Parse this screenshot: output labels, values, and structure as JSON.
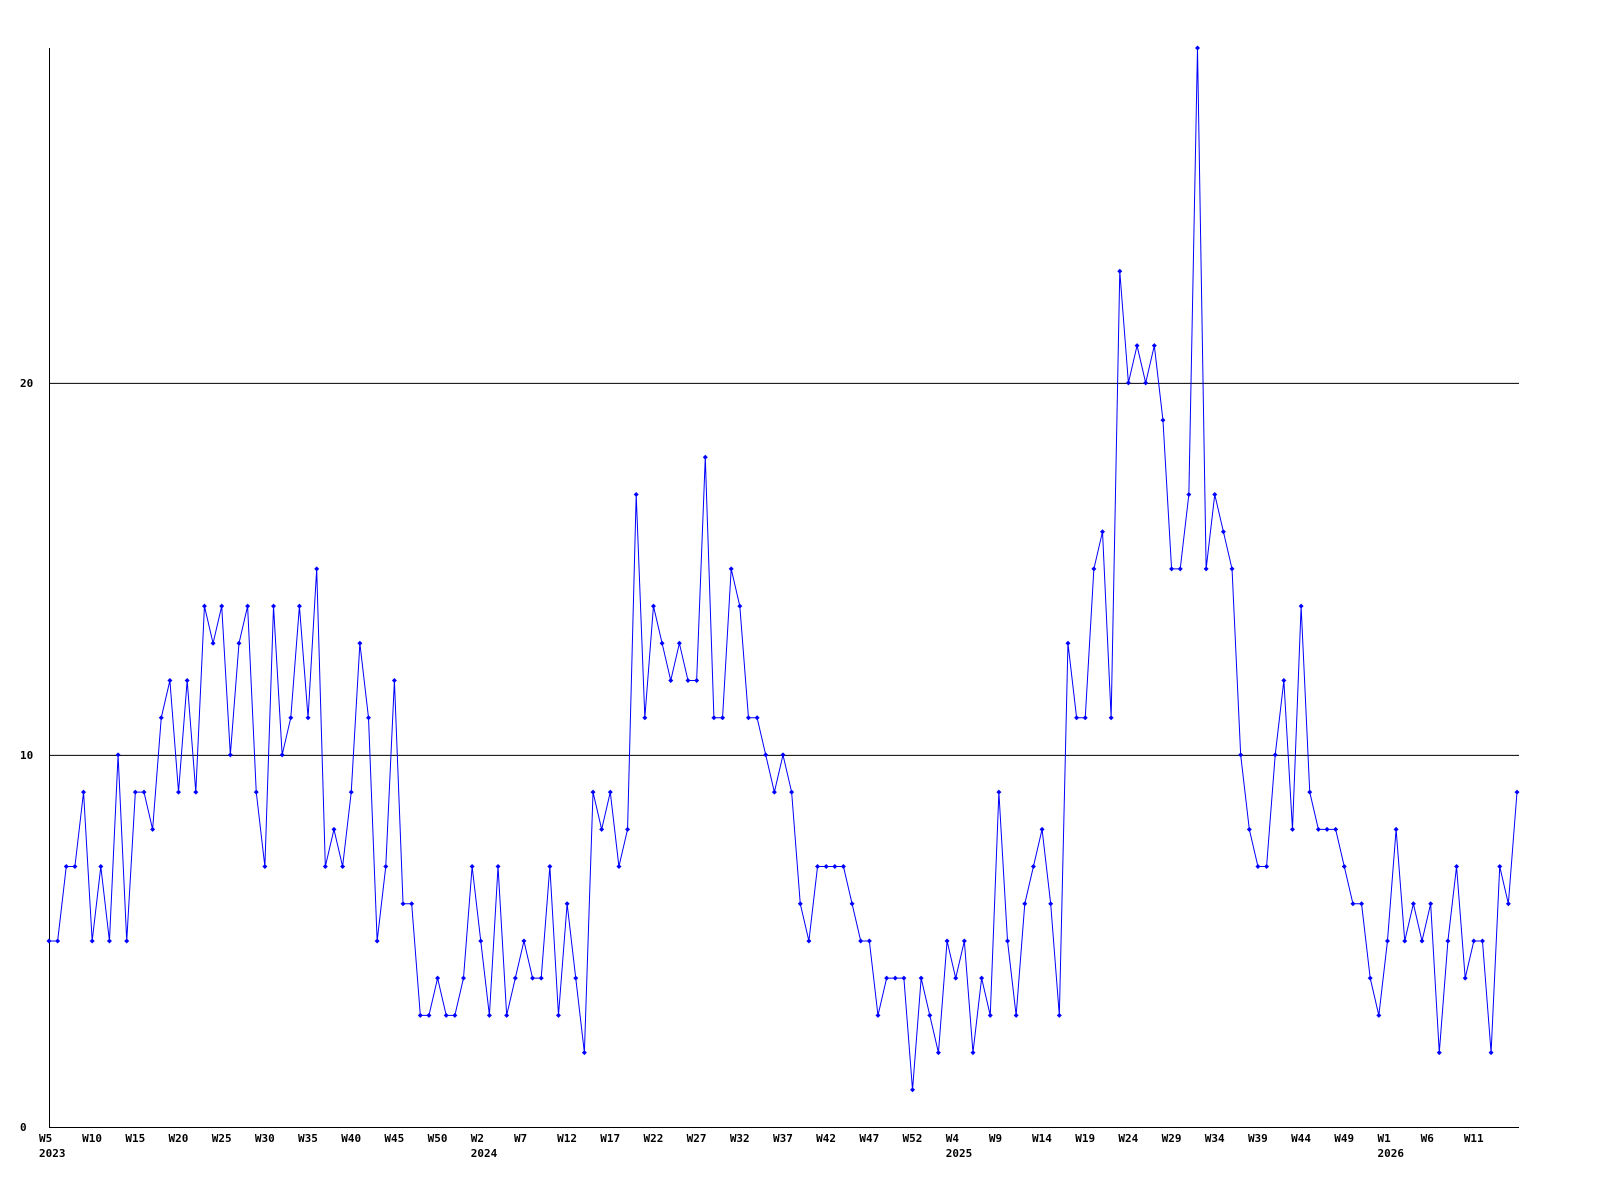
{
  "chart_data": {
    "type": "line",
    "categories": [
      "W5",
      null,
      null,
      null,
      null,
      "W10",
      null,
      null,
      null,
      null,
      "W15",
      null,
      null,
      null,
      null,
      "W20",
      null,
      null,
      null,
      null,
      "W25",
      null,
      null,
      null,
      null,
      "W30",
      null,
      null,
      null,
      null,
      "W35",
      null,
      null,
      null,
      null,
      "W40",
      null,
      null,
      null,
      null,
      "W45",
      null,
      null,
      null,
      null,
      "W50",
      null,
      null,
      null,
      null,
      "W2",
      null,
      null,
      null,
      null,
      "W7",
      null,
      null,
      null,
      null,
      "W12",
      null,
      null,
      null,
      null,
      "W17",
      null,
      null,
      null,
      null,
      "W22",
      null,
      null,
      null,
      null,
      "W27",
      null,
      null,
      null,
      null,
      "W32",
      null,
      null,
      null,
      null,
      "W37",
      null,
      null,
      null,
      null,
      "W42",
      null,
      null,
      null,
      null,
      "W47",
      null,
      null,
      null,
      null,
      "W52",
      null,
      null,
      null,
      null,
      "W4",
      null,
      null,
      null,
      null,
      "W9",
      null,
      null,
      null,
      null,
      "W14",
      null,
      null,
      null,
      null,
      "W19",
      null,
      null,
      null,
      null,
      "W24",
      null,
      null,
      null,
      null,
      "W29",
      null,
      null,
      null,
      null,
      "W34",
      null,
      null,
      null,
      null,
      "W39",
      null,
      null,
      null,
      null,
      "W44",
      null,
      null,
      null,
      null,
      "W49",
      null,
      null,
      null,
      null,
      "W1",
      null,
      null,
      null,
      null,
      "W6",
      null,
      null,
      null,
      null,
      "W11",
      null,
      null,
      null,
      null,
      null
    ],
    "year_labels": [
      "2023",
      null,
      null,
      null,
      null,
      null,
      null,
      null,
      null,
      null,
      null,
      null,
      null,
      null,
      null,
      null,
      null,
      null,
      null,
      null,
      null,
      null,
      null,
      null,
      null,
      null,
      null,
      null,
      null,
      null,
      null,
      null,
      null,
      null,
      null,
      null,
      null,
      null,
      null,
      null,
      null,
      null,
      null,
      null,
      null,
      null,
      null,
      null,
      null,
      null,
      "2024",
      null,
      null,
      null,
      null,
      null,
      null,
      null,
      null,
      null,
      null,
      null,
      null,
      null,
      null,
      null,
      null,
      null,
      null,
      null,
      null,
      null,
      null,
      null,
      null,
      null,
      null,
      null,
      null,
      null,
      null,
      null,
      null,
      null,
      null,
      null,
      null,
      null,
      null,
      null,
      null,
      null,
      null,
      null,
      null,
      null,
      null,
      null,
      null,
      null,
      null,
      null,
      null,
      null,
      null,
      "2025",
      null,
      null,
      null,
      null,
      null,
      null,
      null,
      null,
      null,
      null,
      null,
      null,
      null,
      null,
      null,
      null,
      null,
      null,
      null,
      null,
      null,
      null,
      null,
      null,
      null,
      null,
      null,
      null,
      null,
      null,
      null,
      null,
      null,
      null,
      null,
      null,
      null,
      null,
      null,
      null,
      null,
      null,
      null,
      null,
      null,
      null,
      null,
      null,
      null,
      "2026",
      null,
      null,
      null,
      null,
      null,
      null,
      null,
      null,
      null,
      null,
      null,
      null,
      null,
      null,
      null
    ],
    "series": [
      {
        "color": "#0000ff",
        "values": [
          5,
          5,
          7,
          7,
          9,
          5,
          7,
          5,
          10,
          5,
          9,
          9,
          8,
          11,
          12,
          9,
          12,
          9,
          14,
          13,
          14,
          10,
          13,
          14,
          9,
          7,
          14,
          10,
          11,
          14,
          11,
          15,
          7,
          8,
          7,
          9,
          13,
          11,
          5,
          7,
          12,
          6,
          6,
          3,
          3,
          4,
          3,
          3,
          4,
          7,
          5,
          3,
          7,
          3,
          4,
          5,
          4,
          4,
          7,
          3,
          6,
          4,
          2,
          9,
          8,
          9,
          7,
          8,
          17,
          11,
          14,
          13,
          12,
          13,
          12,
          12,
          18,
          11,
          11,
          15,
          14,
          11,
          11,
          10,
          9,
          10,
          9,
          6,
          5,
          7,
          7,
          7,
          7,
          6,
          5,
          5,
          3,
          4,
          4,
          4,
          1,
          4,
          3,
          2,
          5,
          4,
          5,
          2,
          4,
          3,
          9,
          5,
          3,
          6,
          7,
          8,
          6,
          3,
          13,
          11,
          11,
          15,
          16,
          11,
          23,
          20,
          21,
          20,
          21,
          19,
          15,
          15,
          17,
          29,
          15,
          17,
          16,
          15,
          10,
          8,
          7,
          7,
          10,
          12,
          8,
          14,
          9,
          8,
          8,
          8,
          7,
          6,
          6,
          4,
          3,
          5,
          8,
          5,
          6,
          5,
          6,
          2,
          5,
          7,
          4,
          5,
          5,
          2,
          7,
          6,
          9
        ]
      }
    ],
    "ylim": [
      0,
      29
    ],
    "yticks": [
      0,
      10,
      20
    ],
    "grid": true
  }
}
